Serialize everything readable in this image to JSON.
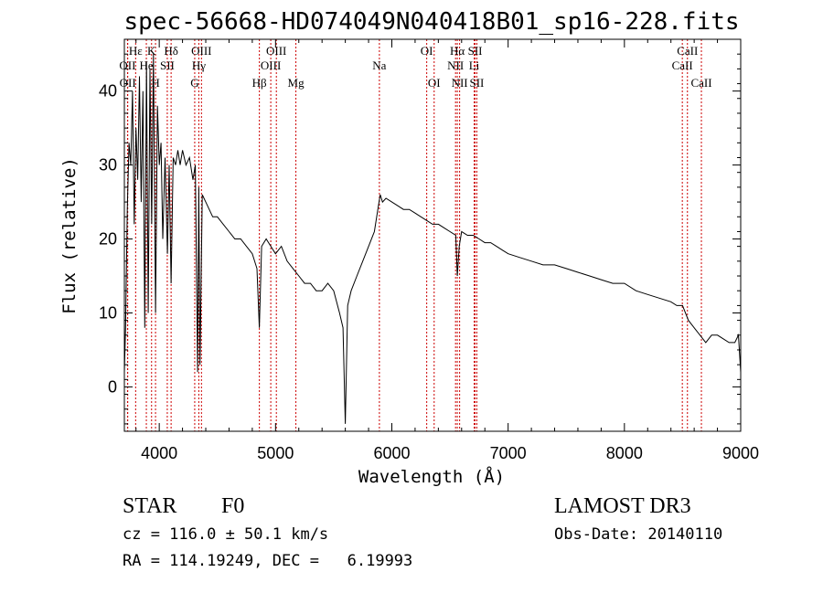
{
  "chart_data": {
    "type": "line",
    "title": "spec-56668-HD074049N040418B01_sp16-228.fits",
    "xlabel": "Wavelength (Å)",
    "ylabel": "Flux (relative)",
    "xlim": [
      3700,
      9000
    ],
    "ylim": [
      -6,
      47
    ],
    "xticks": [
      4000,
      5000,
      6000,
      7000,
      8000,
      9000
    ],
    "yticks": [
      0,
      10,
      20,
      30,
      40
    ],
    "series": [
      {
        "name": "flux",
        "x": [
          3700,
          3710,
          3725,
          3740,
          3755,
          3770,
          3785,
          3800,
          3815,
          3830,
          3845,
          3860,
          3875,
          3890,
          3905,
          3920,
          3935,
          3950,
          3968,
          3985,
          4000,
          4015,
          4030,
          4050,
          4070,
          4085,
          4102,
          4120,
          4140,
          4160,
          4180,
          4200,
          4230,
          4260,
          4290,
          4310,
          4330,
          4340,
          4350,
          4370,
          4400,
          4430,
          4460,
          4500,
          4550,
          4600,
          4650,
          4700,
          4750,
          4800,
          4840,
          4861,
          4880,
          4920,
          4960,
          5000,
          5050,
          5100,
          5150,
          5200,
          5250,
          5300,
          5350,
          5400,
          5450,
          5500,
          5550,
          5580,
          5600,
          5620,
          5650,
          5700,
          5750,
          5800,
          5850,
          5880,
          5900,
          5920,
          5950,
          6000,
          6050,
          6100,
          6150,
          6200,
          6250,
          6300,
          6350,
          6400,
          6450,
          6500,
          6550,
          6563,
          6580,
          6600,
          6650,
          6700,
          6750,
          6800,
          6850,
          6900,
          6950,
          7000,
          7100,
          7200,
          7300,
          7400,
          7500,
          7600,
          7700,
          7800,
          7900,
          8000,
          8100,
          8200,
          8300,
          8400,
          8450,
          8500,
          8550,
          8600,
          8650,
          8700,
          8750,
          8800,
          8850,
          8900,
          8950,
          8980,
          9000
        ],
        "values": [
          2,
          8,
          24,
          33,
          30,
          40,
          22,
          35,
          28,
          42,
          25,
          40,
          8,
          44,
          10,
          43,
          22,
          45,
          10,
          38,
          30,
          33,
          20,
          31,
          18,
          30,
          14,
          31,
          30,
          32,
          30,
          32,
          30,
          31,
          28,
          30,
          2,
          27,
          3,
          26,
          25,
          24,
          23,
          23,
          22,
          21,
          20,
          20,
          19,
          18,
          16,
          8,
          19,
          20,
          19,
          18,
          19,
          17,
          16,
          15,
          14,
          14,
          13,
          13,
          14,
          13,
          10,
          8,
          -5,
          11,
          13,
          15,
          17,
          19,
          21,
          24,
          26,
          25,
          25.5,
          25,
          24.5,
          24,
          24,
          23.5,
          23,
          22.5,
          22,
          22,
          21.5,
          21,
          20.5,
          15,
          19,
          21,
          20.5,
          20.5,
          20,
          19.5,
          19.5,
          19,
          18.5,
          18,
          17.5,
          17,
          16.5,
          16.5,
          16,
          15.5,
          15,
          14.5,
          14,
          14,
          13,
          12.5,
          12,
          11.5,
          11,
          11,
          9,
          8,
          7,
          6,
          7,
          7,
          6.5,
          6,
          6,
          7,
          2
        ]
      }
    ],
    "spectral_lines": [
      {
        "label": "Hε",
        "x": 3797,
        "row": 0
      },
      {
        "label": "OII",
        "x": 3727,
        "row": 1
      },
      {
        "label": "OII",
        "x": 3729,
        "row": 2
      },
      {
        "label": "K",
        "x": 3934,
        "row": 0
      },
      {
        "label": "He",
        "x": 3889,
        "row": 1
      },
      {
        "label": "H",
        "x": 3968,
        "row": 2
      },
      {
        "label": "Hδ",
        "x": 4102,
        "row": 0
      },
      {
        "label": "SII",
        "x": 4069,
        "row": 1
      },
      {
        "label": "OIII",
        "x": 4363,
        "row": 0
      },
      {
        "label": "Hγ",
        "x": 4340,
        "row": 1
      },
      {
        "label": "G",
        "x": 4305,
        "row": 2
      },
      {
        "label": "OIII",
        "x": 5007,
        "row": 0
      },
      {
        "label": "OIII",
        "x": 4959,
        "row": 1
      },
      {
        "label": "Hβ",
        "x": 4861,
        "row": 2
      },
      {
        "label": "Mg",
        "x": 5175,
        "row": 2
      },
      {
        "label": "Na",
        "x": 5893,
        "row": 1
      },
      {
        "label": "OI",
        "x": 6300,
        "row": 0
      },
      {
        "label": "OI",
        "x": 6364,
        "row": 2
      },
      {
        "label": "Hα",
        "x": 6563,
        "row": 0
      },
      {
        "label": "SII",
        "x": 6716,
        "row": 0
      },
      {
        "label": "NII",
        "x": 6548,
        "row": 1
      },
      {
        "label": "Li",
        "x": 6708,
        "row": 1
      },
      {
        "label": "NII",
        "x": 6583,
        "row": 2
      },
      {
        "label": "SII",
        "x": 6731,
        "row": 2
      },
      {
        "label": "CaII",
        "x": 8542,
        "row": 0
      },
      {
        "label": "CaII",
        "x": 8498,
        "row": 1
      },
      {
        "label": "CaII",
        "x": 8662,
        "row": 2
      }
    ]
  },
  "info": {
    "object_class": "STAR",
    "subclass": "F0",
    "survey": "LAMOST DR3",
    "redshift": "cz = 116.0 ± 50.1 km/s",
    "obs_date": "Obs-Date: 20140110",
    "coords": "RA = 114.19249, DEC =   6.19993"
  },
  "colors": {
    "line_marker": "#cc0000",
    "spectrum": "#000000",
    "axes": "#000000"
  }
}
